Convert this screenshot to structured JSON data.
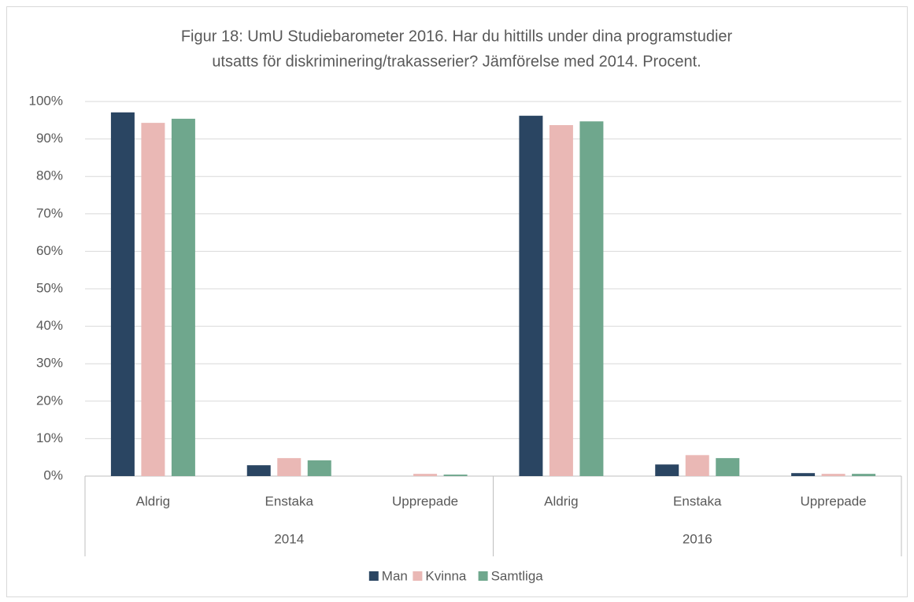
{
  "chart_data": {
    "type": "bar",
    "title": [
      "Figur 18: UmU Studiebarometer 2016. Har du hittills under dina programstudier",
      "utsatts för diskriminering/trakasserier? Jämförelse med 2014. Procent."
    ],
    "categories": [
      "Aldrig",
      "Enstaka",
      "Upprepade",
      "Aldrig",
      "Enstaka",
      "Upprepade"
    ],
    "groups": [
      "2014",
      "2016"
    ],
    "series": [
      {
        "name": "Man",
        "color": "#2a4562",
        "values": [
          97.1,
          2.9,
          0,
          96.2,
          3.1,
          0.8
        ]
      },
      {
        "name": "Kvinna",
        "color": "#eab8b5",
        "values": [
          94.3,
          4.8,
          0.6,
          93.7,
          5.6,
          0.6
        ]
      },
      {
        "name": "Samtliga",
        "color": "#6fa78d",
        "values": [
          95.4,
          4.2,
          0.4,
          94.7,
          4.8,
          0.6
        ]
      }
    ],
    "ylim": [
      0,
      100
    ],
    "yticks": [
      {
        "value": 0,
        "label": "0%"
      },
      {
        "value": 10,
        "label": "10%"
      },
      {
        "value": 20,
        "label": "20%"
      },
      {
        "value": 30,
        "label": "30%"
      },
      {
        "value": 40,
        "label": "40%"
      },
      {
        "value": 50,
        "label": "50%"
      },
      {
        "value": 60,
        "label": "60%"
      },
      {
        "value": 70,
        "label": "70%"
      },
      {
        "value": 80,
        "label": "80%"
      },
      {
        "value": 90,
        "label": "90%"
      },
      {
        "value": 100,
        "label": "100%"
      }
    ],
    "grid": true,
    "legend": "bottom"
  }
}
